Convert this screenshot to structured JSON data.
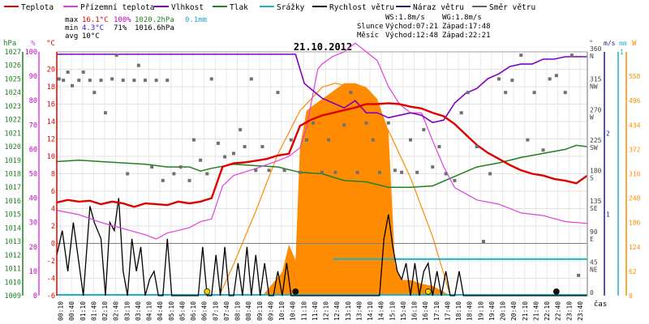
{
  "chart_data": {
    "type": "line",
    "title": "21.10.2012",
    "legend": {
      "placement": "top",
      "items": [
        {
          "label": "Teplota",
          "color": "#e00000"
        },
        {
          "label": "Přízemní teplota",
          "color": "#e040e0"
        },
        {
          "label": "Vlhkost",
          "color": "#8000c0"
        },
        {
          "label": "Tlak",
          "color": "#208020"
        },
        {
          "label": "Srážky",
          "color": "#20b0c8"
        },
        {
          "label": "Rychlost větru",
          "color": "#000000"
        },
        {
          "label": "Náraz větru",
          "color": "#202080"
        },
        {
          "label": "Směr větru",
          "color": "#606060"
        }
      ]
    },
    "stats": {
      "rows": [
        {
          "label": "max",
          "temp": "16.1°C",
          "hum": "100%",
          "press": "1020.2hPa",
          "rain": "0.1mm"
        },
        {
          "label": "min",
          "temp": "4.3°C",
          "hum": "71%",
          "press": "1016.6hPa",
          "rain": ""
        },
        {
          "label": "avg",
          "temp": "10°C",
          "hum": "",
          "press": "",
          "rain": ""
        }
      ],
      "ws": "WS:1.8m/s",
      "wg": "WG:1.8m/s",
      "sun": {
        "label": "Slunce",
        "rise": "Východ:07:21",
        "set": "Západ:17:48"
      },
      "moon": {
        "label": "Měsíc",
        "rise": "Východ:12:48",
        "set": "Západ:22:21"
      }
    },
    "axes": {
      "hpa": {
        "unit": "hPa",
        "min": 1009,
        "max": 1027,
        "ticks": [
          1027,
          1026,
          1025,
          1024,
          1023,
          1022,
          1021,
          1020,
          1019,
          1018,
          1017,
          1016,
          1015,
          1014,
          1013,
          1012,
          1011,
          1010,
          1009
        ]
      },
      "pct": {
        "unit": "%",
        "min": 0,
        "max": 100,
        "ticks": [
          100,
          90,
          80,
          70,
          60,
          50,
          40,
          30,
          20,
          10,
          0
        ]
      },
      "temp": {
        "unit": "°C",
        "min": -6,
        "max": 22,
        "ticks": [
          20,
          18,
          16,
          14,
          12,
          10,
          8,
          6,
          4,
          2,
          0,
          -2,
          -4,
          -6
        ]
      },
      "dir": {
        "unit": "°",
        "min": 0,
        "max": 360,
        "ticks": [
          {
            "v": 360,
            "l": "N"
          },
          {
            "v": 315,
            "l": "NW"
          },
          {
            "v": 270,
            "l": "W"
          },
          {
            "v": 225,
            "l": "SW"
          },
          {
            "v": 180,
            "l": "S"
          },
          {
            "v": 135,
            "l": "SE"
          },
          {
            "v": 90,
            "l": "E"
          },
          {
            "v": 45,
            "l": "NE"
          },
          {
            "v": 0,
            "l": ""
          }
        ]
      },
      "wind": {
        "unit": "m/s",
        "min": 0,
        "max": 3,
        "ticks": [
          1,
          2
        ]
      },
      "rain": {
        "unit": "mm",
        "ticks": [
          1
        ]
      },
      "sun": {
        "unit": "W",
        "min": 0,
        "max": 620,
        "ticks": [
          558,
          496,
          434,
          372,
          310,
          248,
          186,
          124,
          62,
          0
        ]
      },
      "x": {
        "label": "čas",
        "ticks": [
          "00:10",
          "00:40",
          "01:10",
          "01:40",
          "02:10",
          "02:40",
          "03:10",
          "03:40",
          "04:10",
          "04:40",
          "05:10",
          "05:40",
          "06:10",
          "06:40",
          "07:10",
          "07:40",
          "08:10",
          "08:40",
          "09:10",
          "09:40",
          "10:10",
          "10:40",
          "11:10",
          "11:40",
          "12:10",
          "12:40",
          "13:10",
          "13:40",
          "14:10",
          "14:40",
          "15:10",
          "15:40",
          "16:10",
          "16:40",
          "17:10",
          "17:40",
          "18:10",
          "18:40",
          "19:10",
          "19:40",
          "20:10",
          "20:40",
          "21:10",
          "21:40",
          "22:10",
          "22:40",
          "23:10",
          "23:40"
        ]
      }
    },
    "series": {
      "temperature": {
        "hours": [
          0,
          0.5,
          1,
          1.5,
          2,
          2.5,
          3,
          3.5,
          4,
          4.5,
          5,
          5.5,
          6,
          6.5,
          7,
          7.5,
          8,
          8.5,
          9,
          9.5,
          10,
          10.5,
          11,
          11.5,
          12,
          12.5,
          13,
          13.5,
          14,
          14.5,
          15,
          15.5,
          16,
          16.5,
          17,
          17.5,
          18,
          18.5,
          19,
          19.5,
          20,
          20.5,
          21,
          21.5,
          22,
          22.5,
          23,
          23.5,
          24
        ],
        "values": [
          4.7,
          5.0,
          4.8,
          4.9,
          4.5,
          4.8,
          4.6,
          4.2,
          4.6,
          4.5,
          4.4,
          4.8,
          4.6,
          4.8,
          5.2,
          8.8,
          9.2,
          9.3,
          9.5,
          9.7,
          10.1,
          10.3,
          13.5,
          14.2,
          14.7,
          15.0,
          15.3,
          15.6,
          16.0,
          16.0,
          16.1,
          16.0,
          15.7,
          15.5,
          15.0,
          14.6,
          13.7,
          12.5,
          11.3,
          10.4,
          9.7,
          9.0,
          8.4,
          8.0,
          7.8,
          7.4,
          7.2,
          6.9,
          7.8
        ]
      },
      "ground_temperature": {
        "hours": [
          0,
          1,
          2,
          3,
          4,
          4.5,
          5,
          5.5,
          6,
          6.5,
          7,
          7.5,
          8,
          9,
          10,
          10.5,
          11,
          11.3,
          11.8,
          12,
          12.5,
          13,
          13.5,
          14,
          14.5,
          15,
          15.5,
          16,
          16.5,
          17,
          17.5,
          18,
          19,
          20,
          21,
          22,
          23,
          24
        ],
        "values": [
          3.8,
          3.3,
          2.4,
          1.7,
          1.0,
          0.5,
          1.2,
          1.5,
          1.8,
          2.5,
          2.8,
          6.6,
          7.8,
          8.6,
          9.5,
          10.0,
          11.0,
          13.3,
          20.0,
          20.6,
          21.5,
          22.0,
          23.0,
          22.0,
          21.0,
          18.0,
          16.0,
          15.0,
          15.0,
          11.8,
          8.8,
          6.4,
          5.0,
          4.5,
          3.5,
          3.2,
          2.5,
          2.3
        ]
      },
      "humidity": {
        "hours": [
          0,
          2,
          4,
          6,
          8,
          9,
          10,
          10.8,
          11.2,
          12,
          13,
          13.5,
          14,
          14.5,
          15,
          15.5,
          16,
          16.5,
          17,
          17.5,
          18,
          18.5,
          19,
          19.5,
          20,
          20.5,
          21,
          21.5,
          22,
          22.5,
          23,
          23.5,
          24
        ],
        "values": [
          99,
          99,
          99,
          99,
          99,
          99,
          99,
          99,
          87,
          81,
          77,
          80,
          75,
          75,
          73,
          74,
          75,
          74,
          71,
          72,
          79,
          83,
          85,
          89,
          91,
          94,
          95,
          95,
          97,
          97,
          98,
          98,
          98
        ]
      },
      "pressure": {
        "hours": [
          0,
          1,
          2,
          3,
          4,
          5,
          6,
          6.5,
          7,
          8,
          9,
          10,
          11,
          12,
          13,
          14,
          14.5,
          15,
          16,
          17,
          18,
          19,
          20,
          21,
          22,
          23,
          23.5,
          24
        ],
        "values": [
          1018.9,
          1019.0,
          1018.9,
          1018.8,
          1018.7,
          1018.5,
          1018.5,
          1018.2,
          1018.4,
          1018.7,
          1018.6,
          1018.5,
          1018.1,
          1018.0,
          1017.5,
          1017.4,
          1017.2,
          1017.0,
          1017.0,
          1017.1,
          1017.8,
          1018.5,
          1018.8,
          1019.2,
          1019.5,
          1019.8,
          1020.1,
          1020.0
        ]
      },
      "rain_level": {
        "from_hour": 12.5,
        "to_hour": 24,
        "value": 0.45
      },
      "wind_speed": {
        "hours": [
          0,
          0.25,
          0.5,
          0.75,
          1,
          1.2,
          1.5,
          1.7,
          2,
          2.2,
          2.4,
          2.6,
          2.8,
          3,
          3.2,
          3.4,
          3.6,
          3.8,
          4,
          4.2,
          4.4,
          4.6,
          4.8,
          5,
          5.2,
          5.4,
          5.6,
          5.8,
          6,
          6.2,
          6.4,
          6.6,
          6.8,
          7,
          7.2,
          7.4,
          7.6,
          7.8,
          8,
          8.2,
          8.4,
          8.6,
          8.8,
          9,
          9.2,
          9.4,
          9.6,
          9.8,
          10,
          10.2,
          10.4,
          10.6,
          10.8,
          11,
          11.2,
          11.4,
          11.6,
          11.8,
          12,
          12.2,
          12.4,
          12.6,
          12.8,
          13,
          13.2,
          13.4,
          13.6,
          13.8,
          14,
          14.2,
          14.4,
          14.6,
          14.8,
          15,
          15.2,
          15.4,
          15.6,
          15.8,
          16,
          16.2,
          16.4,
          16.6,
          16.8,
          17,
          17.2,
          17.4,
          17.6,
          17.8,
          18,
          18.2,
          18.4,
          18.6,
          18.8,
          19,
          19.2,
          19.4,
          19.6,
          19.8,
          20,
          20.2,
          20.4,
          20.6,
          20.8,
          21,
          21.2,
          21.4,
          21.6,
          21.8,
          22,
          22.2,
          22.4,
          22.6,
          22.8,
          23,
          23.2,
          23.4,
          23.6,
          24
        ],
        "values": [
          0.5,
          0.8,
          0.3,
          0.9,
          0.4,
          0.0,
          1.1,
          0.9,
          0.7,
          0.0,
          0.9,
          0.8,
          1.2,
          0.3,
          0.0,
          0.7,
          0.3,
          0.6,
          0.0,
          0.2,
          0.3,
          0.0,
          0.0,
          0.7,
          0.0,
          0.0,
          0.0,
          0.0,
          0.0,
          0.0,
          0.0,
          0.6,
          0.0,
          0.0,
          0.5,
          0.0,
          0.6,
          0.0,
          0.0,
          0.4,
          0.0,
          0.6,
          0.0,
          0.5,
          0.0,
          0.4,
          0.0,
          0.0,
          0.3,
          0.0,
          0.4,
          0.0,
          0.0,
          0.0,
          0.0,
          0.0,
          0.0,
          0.0,
          0.0,
          0.0,
          0.0,
          0.0,
          0.0,
          0.0,
          0.0,
          0.0,
          0.0,
          0.0,
          0.0,
          0.0,
          0.0,
          0.0,
          0.7,
          1.0,
          0.6,
          0.3,
          0.2,
          0.4,
          0.0,
          0.4,
          0.0,
          0.3,
          0.4,
          0.0,
          0.3,
          0.0,
          0.3,
          0.0,
          0.0,
          0.3,
          0.0,
          0.0,
          0.0,
          0.0,
          0.0,
          0.0,
          0.0,
          0.0,
          0.0,
          0.0,
          0.0,
          0.0,
          0.0,
          0.0,
          0.0,
          0.0,
          0.0,
          0.0,
          0.0,
          0.0,
          0.0,
          0.0,
          0.0,
          0.0,
          0.0,
          0.0,
          0.0,
          0.0
        ]
      },
      "gust_markers": {
        "hours": [
          6.8,
          10.8,
          16.8,
          22.6
        ],
        "colors": [
          "#f0d000",
          "#101010",
          "#f0d000",
          "#101010"
        ]
      },
      "solar_theoretical": {
        "hours": [
          7.35,
          8,
          9,
          10,
          11,
          12,
          12.6,
          13,
          14,
          15,
          16,
          17,
          17.8
        ],
        "values": [
          0,
          80,
          215,
          360,
          470,
          530,
          540,
          535,
          500,
          420,
          300,
          150,
          0
        ]
      },
      "solar": {
        "hours": [
          9.3,
          9.6,
          9.9,
          10.2,
          10.5,
          10.8,
          11.0,
          11.3,
          11.5,
          12.0,
          12.5,
          13.0,
          13.5,
          14.0,
          14.5,
          15.0,
          15.3,
          15.6,
          16.0,
          16.5,
          17.0,
          17.5,
          17.8
        ],
        "values": [
          0,
          20,
          40,
          60,
          130,
          90,
          380,
          470,
          480,
          500,
          520,
          540,
          540,
          530,
          500,
          420,
          80,
          40,
          40,
          30,
          25,
          10,
          0
        ]
      },
      "wind_direction": {
        "hours": [
          0.1,
          0.3,
          0.5,
          0.7,
          1,
          1.2,
          1.5,
          1.7,
          2,
          2.2,
          2.5,
          2.7,
          3,
          3.2,
          3.5,
          3.7,
          4,
          4.3,
          4.5,
          4.8,
          5,
          5.3,
          5.6,
          6,
          6.2,
          6.5,
          6.8,
          7,
          7.3,
          7.6,
          8,
          8.3,
          8.5,
          8.8,
          9,
          9.3,
          9.6,
          10,
          10.3,
          10.6,
          11,
          11.3,
          11.6,
          12,
          12.3,
          12.6,
          13,
          13.3,
          13.6,
          14,
          14.3,
          14.6,
          15,
          15.3,
          15.6,
          16,
          16.3,
          16.6,
          17,
          17.3,
          17.6,
          18,
          18.3,
          18.6,
          19,
          19.3,
          19.6,
          20,
          20.3,
          20.6,
          21,
          21.3,
          21.6,
          22,
          22.3,
          22.6,
          23,
          23.3,
          23.6
        ],
        "values": [
          320,
          318,
          330,
          310,
          318,
          330,
          318,
          300,
          318,
          270,
          320,
          355,
          318,
          180,
          318,
          340,
          318,
          190,
          318,
          170,
          318,
          180,
          190,
          170,
          230,
          200,
          180,
          320,
          225,
          205,
          210,
          245,
          220,
          320,
          185,
          220,
          185,
          300,
          185,
          230,
          182,
          230,
          255,
          182,
          230,
          182,
          252,
          300,
          182,
          255,
          230,
          182,
          255,
          185,
          182,
          230,
          182,
          245,
          190,
          220,
          180,
          170,
          270,
          300,
          220,
          80,
          180,
          320,
          300,
          318,
          355,
          230,
          300,
          215,
          320,
          325,
          300,
          355,
          30
        ]
      }
    }
  }
}
